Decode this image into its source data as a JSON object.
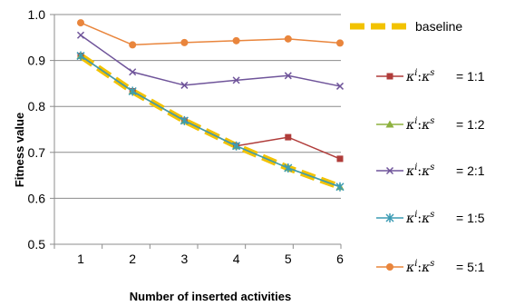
{
  "chart_data": {
    "type": "line",
    "xlabel": "Number of inserted activities",
    "ylabel": "Fitness value",
    "x": [
      1,
      2,
      3,
      4,
      5,
      6
    ],
    "xlim": [
      1,
      6
    ],
    "ylim": [
      0.5,
      1.0
    ],
    "y_ticks": [
      "0.5",
      "0.6",
      "0.7",
      "0.8",
      "0.9",
      "1.0"
    ],
    "x_ticks": [
      "1",
      "2",
      "3",
      "4",
      "5",
      "6"
    ],
    "grid": "horizontal",
    "legend_position": "right",
    "series": [
      {
        "name": "baseline",
        "legend_label": "baseline",
        "values": [
          0.91,
          0.833,
          0.769,
          0.714,
          0.666,
          0.625
        ],
        "color": "#F2C200",
        "marker": "none",
        "style": "dashed-thick"
      },
      {
        "name": "1:1",
        "legend_label": "= 1:1",
        "values": [
          0.91,
          0.833,
          0.769,
          0.714,
          0.733,
          0.686
        ],
        "color": "#B03C3A",
        "marker": "square"
      },
      {
        "name": "1:2",
        "legend_label": "= 1:2",
        "values": [
          0.91,
          0.833,
          0.769,
          0.714,
          0.666,
          0.625
        ],
        "color": "#8DB13F",
        "marker": "triangle"
      },
      {
        "name": "2:1",
        "legend_label": "= 2:1",
        "values": [
          0.955,
          0.875,
          0.846,
          0.857,
          0.867,
          0.844
        ],
        "color": "#6F549A",
        "marker": "x"
      },
      {
        "name": "1:5",
        "legend_label": "= 1:5",
        "values": [
          0.91,
          0.833,
          0.769,
          0.714,
          0.666,
          0.625
        ],
        "color": "#3C9BB4",
        "marker": "star"
      },
      {
        "name": "5:1",
        "legend_label": "= 5:1",
        "values": [
          0.982,
          0.934,
          0.939,
          0.943,
          0.947,
          0.938
        ],
        "color": "#E9853C",
        "marker": "circle"
      }
    ]
  }
}
